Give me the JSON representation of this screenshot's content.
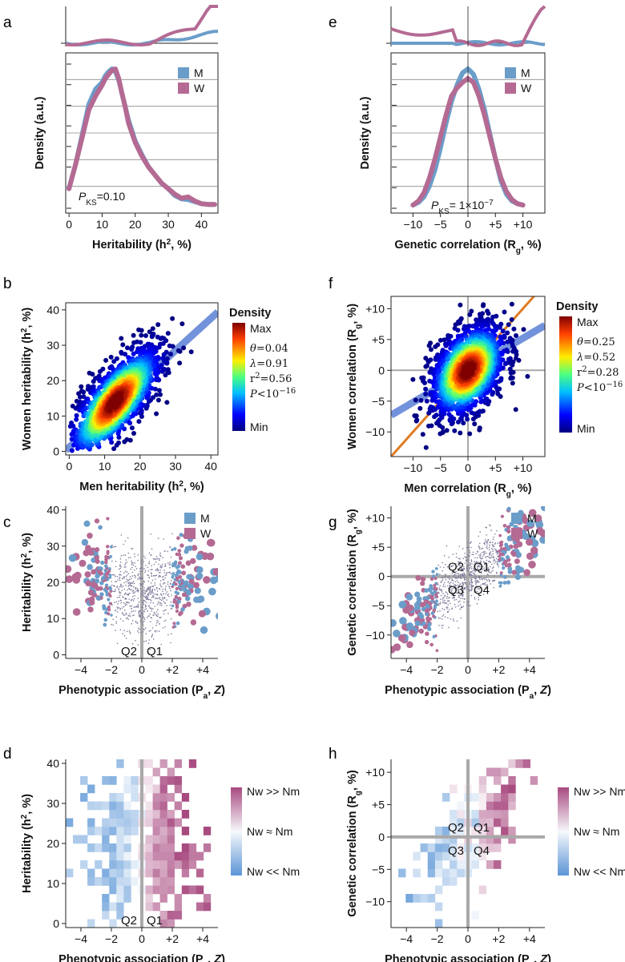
{
  "panel_letters": [
    "a",
    "b",
    "c",
    "d",
    "e",
    "f",
    "g",
    "h"
  ],
  "colors": {
    "men": "#6b9dc9",
    "women": "#b46a93",
    "grid": "#8a8a8a",
    "zero": "#a9a9a9",
    "fit": "#5b7fd6",
    "identity": "#e07b22"
  },
  "legend": {
    "men": "M",
    "women": "W"
  },
  "panel_a": {
    "stat_prefix": "P",
    "stat_sub": "KS",
    "stat_value": "=0.10"
  },
  "panel_e": {
    "stat_prefix": "P",
    "stat_sub": "KS",
    "stat_value": "= 1×10",
    "stat_exp": "−7"
  },
  "density_scale": {
    "title": "Density",
    "max": "Max",
    "min": "Min"
  },
  "panel_b": {
    "theta": "=0.04",
    "lambda": "=0.91",
    "r2": "=0.56",
    "p": "<10",
    "p_exp": "−16"
  },
  "panel_f": {
    "theta": "=0.25",
    "lambda": "=0.52",
    "r2": "=0.28",
    "p": "<10",
    "p_exp": "−16"
  },
  "diff_scale": {
    "top": "Nw >> Nm",
    "mid": "Nw ≈ Nm",
    "bottom": "Nw << Nm"
  },
  "quadrants": {
    "q1": "Q1",
    "q2": "Q2",
    "q3": "Q3",
    "q4": "Q4"
  },
  "chart_data": [
    {
      "id": "a",
      "type": "line",
      "title": "",
      "xlabel": "Heritability (h², %)",
      "ylabel": "Density (a.u.)",
      "xlim": [
        -1,
        45
      ],
      "xticks": [
        0,
        10,
        20,
        30,
        40
      ],
      "series": [
        {
          "name": "M",
          "x": [
            0,
            2,
            4,
            6,
            8,
            10,
            11,
            12,
            13,
            14,
            15,
            16,
            17,
            18,
            20,
            22,
            24,
            26,
            28,
            30,
            32,
            34,
            36,
            38,
            40,
            42,
            44
          ],
          "y": [
            0.12,
            0.3,
            0.52,
            0.74,
            0.85,
            0.9,
            0.95,
            0.98,
            1.0,
            0.98,
            0.92,
            0.82,
            0.72,
            0.62,
            0.47,
            0.37,
            0.28,
            0.22,
            0.16,
            0.12,
            0.07,
            0.045,
            0.04,
            0.025,
            0.01,
            0.005,
            0.005
          ]
        },
        {
          "name": "W",
          "x": [
            0,
            2,
            4,
            6,
            8,
            10,
            11,
            12,
            13,
            14,
            15,
            16,
            17,
            18,
            20,
            22,
            24,
            26,
            28,
            30,
            32,
            34,
            36,
            38,
            40,
            42,
            44
          ],
          "y": [
            0.12,
            0.3,
            0.5,
            0.7,
            0.8,
            0.88,
            0.93,
            0.96,
            0.99,
            1.0,
            0.93,
            0.82,
            0.72,
            0.6,
            0.46,
            0.36,
            0.28,
            0.22,
            0.16,
            0.12,
            0.08,
            0.05,
            0.06,
            0.03,
            0.01,
            0.005,
            0.005
          ]
        }
      ],
      "marginal_above": true
    },
    {
      "id": "e",
      "type": "line",
      "title": "",
      "xlabel": "Genetic correlation (Rg, %)",
      "ylabel": "Density (a.u.)",
      "xlim": [
        -14,
        14
      ],
      "xticks": [
        -10,
        -5,
        0,
        5,
        10
      ],
      "xtick_labels": [
        "−10",
        "−5",
        "0",
        "+5",
        "+10"
      ],
      "series": [
        {
          "name": "M",
          "x": [
            -10,
            -9,
            -8,
            -7,
            -6,
            -5,
            -4,
            -3,
            -2,
            -1,
            0,
            1,
            2,
            3,
            4,
            5,
            6,
            7,
            8,
            9,
            10
          ],
          "y": [
            0.0,
            0.02,
            0.06,
            0.14,
            0.26,
            0.42,
            0.6,
            0.76,
            0.88,
            0.97,
            1.0,
            0.96,
            0.85,
            0.7,
            0.52,
            0.34,
            0.18,
            0.08,
            0.03,
            0.01,
            0.0
          ]
        },
        {
          "name": "W",
          "x": [
            -10,
            -9,
            -8,
            -7,
            -6,
            -5,
            -4,
            -3,
            -2,
            -1,
            0,
            1,
            2,
            3,
            4,
            5,
            6,
            7,
            8,
            9,
            10
          ],
          "y": [
            0.0,
            0.03,
            0.09,
            0.2,
            0.34,
            0.5,
            0.66,
            0.8,
            0.86,
            0.9,
            0.93,
            0.9,
            0.8,
            0.66,
            0.5,
            0.34,
            0.2,
            0.1,
            0.04,
            0.01,
            0.0
          ]
        }
      ],
      "marginal_above": true
    },
    {
      "id": "b",
      "type": "scatter",
      "title": "",
      "xlabel": "Men heritability (h², %)",
      "ylabel": "Women heritability (h², %)",
      "xlim": [
        -1,
        42
      ],
      "ylim": [
        -1,
        42
      ],
      "xticks": [
        0,
        10,
        20,
        30,
        40
      ],
      "yticks": [
        0,
        10,
        20,
        30,
        40
      ],
      "density_center": [
        13,
        14
      ],
      "fit": {
        "slope": 0.91,
        "intercept": 1.2
      }
    },
    {
      "id": "f",
      "type": "scatter",
      "title": "",
      "xlabel": "Men correlation (Rg, %)",
      "ylabel": "Women correlation (Rg, %)",
      "xlim": [
        -14,
        14
      ],
      "ylim": [
        -14,
        12
      ],
      "xticks": [
        -10,
        -5,
        0,
        5,
        10
      ],
      "xtick_labels": [
        "−10",
        "−5",
        "0",
        "+5",
        "+10"
      ],
      "yticks": [
        -10,
        -5,
        0,
        5,
        10
      ],
      "ytick_labels": [
        "−10",
        "−5",
        "0",
        "+5",
        "+10"
      ],
      "density_center": [
        0,
        0
      ],
      "fit": {
        "slope": 0.52,
        "intercept": 0
      },
      "identity": true
    },
    {
      "id": "c",
      "type": "scatter",
      "title": "",
      "xlabel": "Phenotypic association (Pa, Z)",
      "ylabel": "Heritability (h², %)",
      "xlim": [
        -5,
        5
      ],
      "ylim": [
        -1,
        41
      ],
      "xticks": [
        -4,
        -2,
        0,
        2,
        4
      ],
      "xtick_labels": [
        "−4",
        "−2",
        "0",
        "+2",
        "+4"
      ],
      "yticks": [
        0,
        10,
        20,
        30,
        40
      ],
      "series": [
        {
          "name": "M"
        },
        {
          "name": "W"
        }
      ],
      "quadrants": [
        "Q2",
        "Q1"
      ]
    },
    {
      "id": "g",
      "type": "scatter",
      "title": "",
      "xlabel": "Phenotypic association (Pa, Z)",
      "ylabel": "Genetic correlation (Rg, %)",
      "xlim": [
        -5,
        5
      ],
      "ylim": [
        -14,
        12
      ],
      "xticks": [
        -4,
        -2,
        0,
        2,
        4
      ],
      "xtick_labels": [
        "−4",
        "−2",
        "0",
        "+2",
        "+4"
      ],
      "yticks": [
        -10,
        -5,
        0,
        5,
        10
      ],
      "ytick_labels": [
        "−10",
        "−5",
        "0",
        "+5",
        "+10"
      ],
      "series": [
        {
          "name": "M"
        },
        {
          "name": "W"
        }
      ],
      "quadrants": [
        "Q2",
        "Q1",
        "Q3",
        "Q4"
      ]
    },
    {
      "id": "d",
      "type": "heatmap",
      "title": "",
      "xlabel": "Phenotypic association (Pa, Z)",
      "ylabel": "Heritability (h², %)",
      "xlim": [
        -5,
        5
      ],
      "ylim": [
        -1,
        41
      ],
      "xticks": [
        -4,
        -2,
        0,
        2,
        4
      ],
      "xtick_labels": [
        "−4",
        "−2",
        "0",
        "+2",
        "+4"
      ],
      "yticks": [
        0,
        10,
        20,
        30,
        40
      ],
      "quadrants": [
        "Q2",
        "Q1"
      ]
    },
    {
      "id": "h",
      "type": "heatmap",
      "title": "",
      "xlabel": "Phenotypic association (Pa, Z)",
      "ylabel": "Genetic correlation (Rg, %)",
      "xlim": [
        -5,
        5
      ],
      "ylim": [
        -14,
        12
      ],
      "xticks": [
        -4,
        -2,
        0,
        2,
        4
      ],
      "xtick_labels": [
        "−4",
        "−2",
        "0",
        "+2",
        "+4"
      ],
      "yticks": [
        -10,
        -5,
        0,
        5,
        10
      ],
      "ytick_labels": [
        "−10",
        "−5",
        "0",
        "+5",
        "+10"
      ],
      "quadrants": [
        "Q2",
        "Q1",
        "Q3",
        "Q4"
      ]
    }
  ]
}
